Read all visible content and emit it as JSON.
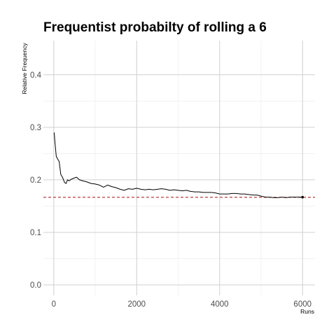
{
  "chart_data": {
    "type": "line",
    "title": "Frequentist probabilty of rolling a 6",
    "xlabel": "Runs",
    "ylabel": "Relative Frequency",
    "xlim": [
      -250,
      6300
    ],
    "ylim": [
      -0.02,
      0.465
    ],
    "x_ticks": [
      0,
      2000,
      4000,
      6000
    ],
    "x_tick_labels": [
      "0",
      "2000",
      "4000",
      "6000"
    ],
    "y_ticks": [
      0.0,
      0.1,
      0.2,
      0.3,
      0.4
    ],
    "y_tick_labels": [
      "0.0",
      "0.1",
      "0.2",
      "0.3",
      "0.4"
    ],
    "grid": true,
    "reference_line": {
      "y": 0.1667,
      "style": "dashed",
      "color": "#a50f15"
    },
    "series": [
      {
        "color": "#000000",
        "x": [
          10,
          30,
          60,
          90,
          130,
          170,
          210,
          260,
          300,
          330,
          370,
          420,
          480,
          550,
          620,
          700,
          800,
          900,
          1000,
          1100,
          1200,
          1300,
          1400,
          1500,
          1600,
          1700,
          1800,
          1900,
          2000,
          2100,
          2200,
          2300,
          2400,
          2500,
          2600,
          2700,
          2800,
          2900,
          3000,
          3100,
          3200,
          3300,
          3400,
          3500,
          3600,
          3700,
          3800,
          3900,
          4000,
          4100,
          4200,
          4300,
          4400,
          4500,
          4600,
          4700,
          4800,
          4900,
          5000,
          5100,
          5200,
          5300,
          5400,
          5500,
          5600,
          5700,
          5800,
          5900,
          6000
        ],
        "y": [
          0.29,
          0.27,
          0.245,
          0.24,
          0.235,
          0.21,
          0.205,
          0.195,
          0.193,
          0.2,
          0.198,
          0.201,
          0.203,
          0.205,
          0.2,
          0.198,
          0.196,
          0.193,
          0.192,
          0.19,
          0.186,
          0.19,
          0.187,
          0.185,
          0.182,
          0.18,
          0.183,
          0.182,
          0.184,
          0.182,
          0.181,
          0.182,
          0.181,
          0.182,
          0.183,
          0.182,
          0.18,
          0.181,
          0.18,
          0.179,
          0.18,
          0.178,
          0.177,
          0.177,
          0.176,
          0.176,
          0.176,
          0.175,
          0.173,
          0.173,
          0.173,
          0.174,
          0.174,
          0.173,
          0.173,
          0.172,
          0.171,
          0.171,
          0.169,
          0.167,
          0.167,
          0.166,
          0.166,
          0.167,
          0.166,
          0.167,
          0.167,
          0.167,
          0.167
        ]
      }
    ]
  }
}
